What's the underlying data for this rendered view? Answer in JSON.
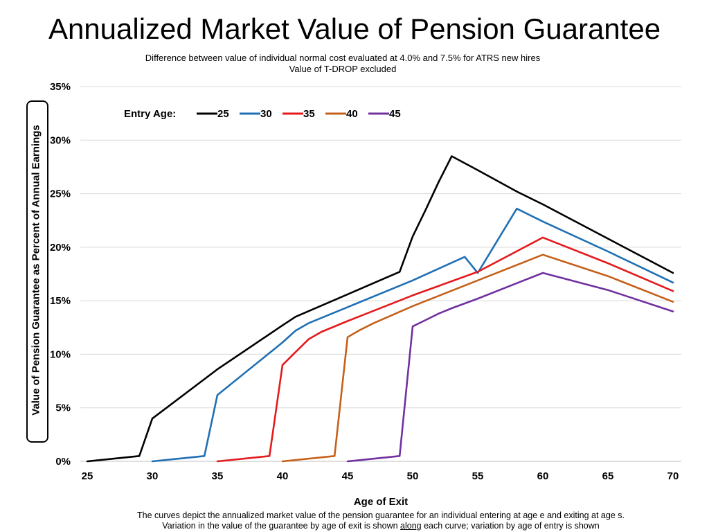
{
  "chart_data": {
    "type": "line",
    "title": "Annualized Market Value of Pension Guarantee",
    "subtitle_lines": [
      "Difference between value of individual normal cost evaluated at 4.0% and 7.5% for ATRS new hires",
      "Value of T-DROP excluded"
    ],
    "xlabel": "Age of Exit",
    "ylabel": "Value of Pension Guarantee as Percent of Annual Earnings",
    "xlim": [
      25,
      70
    ],
    "ylim": [
      0,
      35
    ],
    "x_ticks": [
      "25",
      "30",
      "35",
      "40",
      "45",
      "50",
      "55",
      "60",
      "65",
      "70"
    ],
    "y_ticks": [
      "0%",
      "5%",
      "10%",
      "15%",
      "20%",
      "25%",
      "30%",
      "35%"
    ],
    "grid": "horizontal",
    "legend": {
      "title": "Entry Age:",
      "placement": "top-left"
    },
    "series": [
      {
        "name": "25",
        "color": "#000000",
        "x": [
          25,
          29,
          30,
          35,
          40,
          41,
          45,
          49,
          50,
          51,
          52,
          53,
          55,
          58,
          60,
          65,
          70
        ],
        "y": [
          0.0,
          0.5,
          4.0,
          8.6,
          12.7,
          13.5,
          15.6,
          17.7,
          21.0,
          23.5,
          26.1,
          28.5,
          27.2,
          25.2,
          24.0,
          20.8,
          17.6
        ]
      },
      {
        "name": "30",
        "color": "#1f6fb4",
        "x": [
          30,
          34,
          35,
          40,
          41,
          42,
          45,
          50,
          54,
          55,
          58,
          60,
          65,
          70
        ],
        "y": [
          0.0,
          0.5,
          6.2,
          11.1,
          12.2,
          12.9,
          14.4,
          16.9,
          19.1,
          17.6,
          23.6,
          22.4,
          19.6,
          16.7
        ]
      },
      {
        "name": "35",
        "color": "#e41a1c",
        "x": [
          35,
          39,
          40,
          41,
          42,
          43,
          45,
          50,
          55,
          60,
          65,
          70
        ],
        "y": [
          0.0,
          0.5,
          9.0,
          10.2,
          11.4,
          12.1,
          13.1,
          15.5,
          17.7,
          20.9,
          18.5,
          15.9
        ]
      },
      {
        "name": "40",
        "color": "#c5601a",
        "x": [
          40,
          44,
          45,
          46,
          47,
          50,
          55,
          60,
          65,
          70
        ],
        "y": [
          0.0,
          0.5,
          11.6,
          12.3,
          12.9,
          14.5,
          16.9,
          19.3,
          17.3,
          14.9
        ]
      },
      {
        "name": "45",
        "color": "#7030a0",
        "x": [
          45,
          49,
          50,
          51,
          52,
          53,
          55,
          60,
          65,
          70
        ],
        "y": [
          0.0,
          0.5,
          12.6,
          13.2,
          13.8,
          14.3,
          15.2,
          17.6,
          16.0,
          14.0
        ]
      }
    ]
  },
  "footnote": {
    "line1": "The curves depict the annualized market value of the pension guarantee for an individual entering at age e and exiting at age s.",
    "line2_before": "Variation in the value of the guarantee by age of exit is shown ",
    "line2_underlined": "along",
    "line2_after": " each curve; variation by age of entry is shown"
  }
}
